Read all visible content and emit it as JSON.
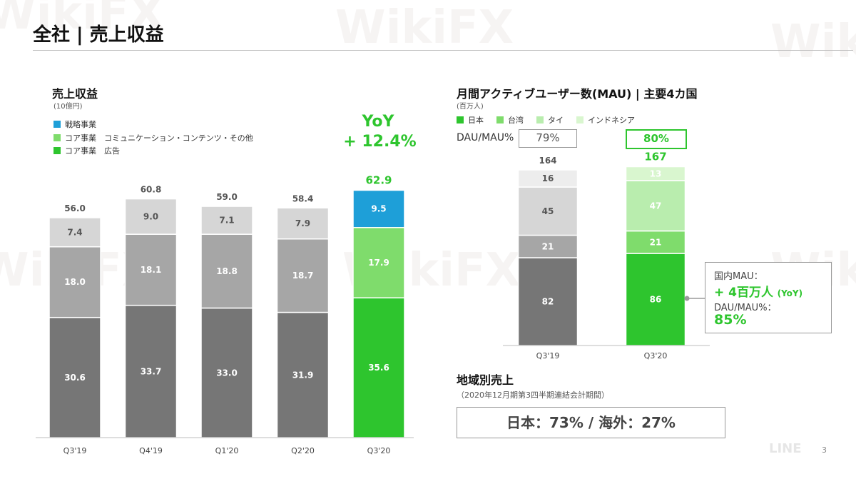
{
  "page": {
    "title": "全社 | 売上収益",
    "page_number": "3"
  },
  "watermark": {
    "text": "WikiFX",
    "logo_text": "LINE"
  },
  "revenue": {
    "title": "売上収益",
    "unit": "(10億円)",
    "yoy_label": "YoY",
    "yoy_value": "+ 12.4%"
  },
  "mau": {
    "title": "月間アクティブユーザー数(MAU) | 主要4カ国",
    "unit": "(百万人)",
    "dau_label": "DAU/MAU%",
    "dau_values": [
      "79%",
      "80%"
    ],
    "callout": {
      "line1": "国内MAU：",
      "line2": "+ 4百万人",
      "line2_suffix": "(YoY)",
      "line3": "DAU/MAU%：",
      "line4": "85%"
    }
  },
  "region": {
    "title": "地域別売上",
    "subtitle": "（2020年12月期第3四半期連結会計期間）",
    "text": "日本：73% / 海外：27%"
  },
  "colors": {
    "green": "#2ec52e",
    "blue": "#1e9fd8",
    "revenue_gray": [
      "#767676",
      "#a6a6a6",
      "#d6d6d6"
    ],
    "revenue_green": [
      "#2ec52e",
      "#7fdc6c",
      "#1e9fd8"
    ],
    "mau_gray": [
      "#767676",
      "#a6a6a6",
      "#d6d6d6",
      "#ededed"
    ],
    "mau_green": [
      "#2ec52e",
      "#7fdc6c",
      "#b9edae",
      "#d9f6cf"
    ]
  },
  "chart_data": [
    {
      "type": "bar",
      "stacked": true,
      "categories": [
        "Q3'19",
        "Q4'19",
        "Q1'20",
        "Q2'20",
        "Q3'20"
      ],
      "series": [
        {
          "name": "コア事業　広告",
          "values": [
            30.6,
            33.7,
            33.0,
            31.9,
            35.6
          ]
        },
        {
          "name": "コア事業　コミュニケーション・コンテンツ・その他",
          "values": [
            18.0,
            18.1,
            18.8,
            18.7,
            17.9
          ]
        },
        {
          "name": "戦略事業",
          "values": [
            7.4,
            9.0,
            7.1,
            7.9,
            9.5
          ]
        }
      ],
      "totals": [
        "56.0",
        "60.8",
        "59.0",
        "58.4",
        "62.9"
      ],
      "labels": [
        [
          "30.6",
          "33.7",
          "33.0",
          "31.9",
          "35.6"
        ],
        [
          "18.0",
          "18.1",
          "18.8",
          "18.7",
          "17.9"
        ],
        [
          "7.4",
          "9.0",
          "7.1",
          "7.9",
          "9.5"
        ]
      ],
      "legend": [
        "戦略事業",
        "コア事業　コミュニケーション・コンテンツ・その他",
        "コア事業　広告"
      ],
      "highlight_category": "Q3'20",
      "grid": false
    },
    {
      "type": "bar",
      "stacked": true,
      "categories": [
        "Q3'19",
        "Q3'20"
      ],
      "series": [
        {
          "name": "日本",
          "values": [
            82,
            86
          ]
        },
        {
          "name": "台湾",
          "values": [
            21,
            21
          ]
        },
        {
          "name": "タイ",
          "values": [
            45,
            47
          ]
        },
        {
          "name": "インドネシア",
          "values": [
            16,
            13
          ]
        }
      ],
      "totals": [
        "164",
        "167"
      ],
      "labels": [
        [
          "82",
          "86"
        ],
        [
          "21",
          "21"
        ],
        [
          "45",
          "47"
        ],
        [
          "16",
          "13"
        ]
      ],
      "legend": [
        "日本",
        "台湾",
        "タイ",
        "インドネシア"
      ],
      "highlight_category": "Q3'20",
      "grid": false
    }
  ]
}
